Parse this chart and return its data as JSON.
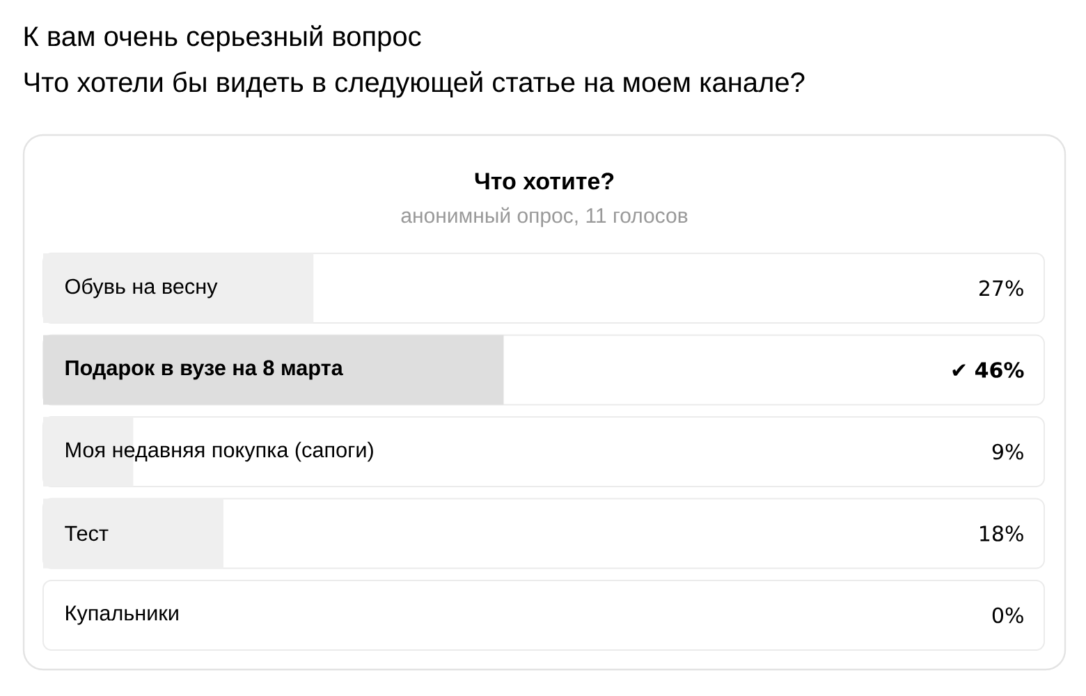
{
  "chart_data": {
    "type": "bar",
    "orientation": "horizontal",
    "title": "Что хотите?",
    "subtitle": "анонимный опрос, 11 голосов",
    "annotations": [
      "К вам очень серьезный вопрос",
      "Что хотели бы видеть в следующей статье на моем канале?"
    ],
    "categories": [
      "Обувь на весну",
      "**Подарок в вузе на 8 марта**",
      "Моя недавняя покупка (сапоги)",
      "Тест",
      "Купальники"
    ],
    "values": [
      27,
      46,
      9,
      18,
      0
    ],
    "value_labels": [
      "27%",
      "✔ **46%**",
      "9%",
      "18%",
      "0%"
    ],
    "colors": [
      "#efefef",
      "#dedede",
      "#efefef",
      "#efefef",
      "#efefef"
    ],
    "xlim": [
      0,
      100
    ]
  }
}
